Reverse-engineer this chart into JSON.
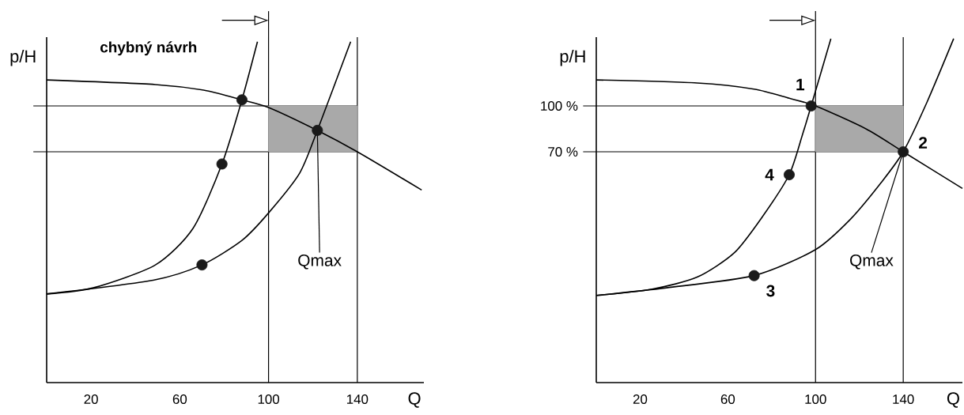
{
  "chart_data": [
    {
      "type": "line",
      "title": "chybný návrh",
      "xlabel": "Q",
      "ylabel": "p/H",
      "xlim": [
        0,
        170
      ],
      "ylim": [
        -81,
        145
      ],
      "xticks": [
        20,
        60,
        100,
        140
      ],
      "tick_labels": "x",
      "series": [
        {
          "type": "bar",
          "color": "#a9a9a9",
          "x": [
            120
          ],
          "base": [
            70
          ],
          "values": [
            30
          ]
        },
        {
          "color": "#000000",
          "x": [
            0,
            49,
            72,
            88,
            100,
            122,
            140,
            169
          ],
          "values": [
            117,
            114,
            110,
            104,
            99,
            84,
            70,
            45
          ]
        },
        {
          "color": "#000000",
          "x": [
            0,
            21,
            49,
            66,
            79,
            88,
            95
          ],
          "values": [
            -23,
            -19,
            -4,
            20,
            62,
            104,
            142
          ]
        },
        {
          "color": "#000000",
          "x": [
            0,
            48,
            70,
            88,
            100,
            114,
            122,
            137
          ],
          "values": [
            -23,
            -14,
            -4,
            12,
            30,
            56,
            84,
            142
          ]
        },
        {
          "type": "scatter",
          "color": "#1a1a1a",
          "marker": "circle",
          "x": [
            88,
            79,
            70,
            122
          ],
          "values": [
            104,
            62,
            -4,
            84
          ]
        }
      ],
      "ref_lines": [
        {
          "axis": "y",
          "value": 100
        },
        {
          "axis": "y",
          "value": 70
        },
        {
          "axis": "x",
          "value": 100
        },
        {
          "axis": "x",
          "value": 140
        }
      ],
      "annotations": [
        {
          "text": "Qmax",
          "x": 122,
          "y": 84
        }
      ]
    },
    {
      "type": "line",
      "xlabel": "Q",
      "ylabel": "p/H",
      "xlim": [
        0,
        167
      ],
      "ylim": [
        -81,
        145
      ],
      "xticks": [
        20,
        60,
        100,
        140
      ],
      "yticks": [
        {
          "value": 100,
          "label": "100 %"
        },
        {
          "value": 70,
          "label": "70 %"
        }
      ],
      "series": [
        {
          "type": "bar",
          "color": "#a9a9a9",
          "x": [
            120
          ],
          "base": [
            70
          ],
          "values": [
            30
          ]
        },
        {
          "color": "#000000",
          "x": [
            0,
            46,
            72,
            88,
            100,
            123,
            140,
            167
          ],
          "values": [
            117,
            115,
            111,
            105,
            100,
            85,
            70,
            46
          ]
        },
        {
          "color": "#000000",
          "x": [
            0,
            25,
            46,
            63,
            76,
            88,
            94,
            98,
            107
          ],
          "values": [
            -24,
            -20,
            -12,
            4,
            28,
            55,
            81,
            100,
            144
          ]
        },
        {
          "color": "#000000",
          "x": [
            0,
            32,
            72,
            100,
            116,
            130,
            140,
            151,
            163
          ],
          "values": [
            -24,
            -19,
            -11,
            6,
            26,
            50,
            70,
            103,
            144
          ]
        },
        {
          "type": "scatter",
          "color": "#1a1a1a",
          "marker": "circle",
          "x": [
            98,
            140,
            72,
            88
          ],
          "values": [
            100,
            70,
            -11,
            55
          ]
        }
      ],
      "ref_lines": [
        {
          "axis": "y",
          "value": 100
        },
        {
          "axis": "y",
          "value": 70
        },
        {
          "axis": "x",
          "value": 100
        },
        {
          "axis": "x",
          "value": 140
        }
      ],
      "annotations": [
        {
          "text": "Qmax",
          "x": 140,
          "y": 70
        },
        {
          "text": "1",
          "x": 98,
          "y": 100
        },
        {
          "text": "2",
          "x": 140,
          "y": 70
        },
        {
          "text": "3",
          "x": 72,
          "y": -11
        },
        {
          "text": "4",
          "x": 88,
          "y": 55
        }
      ]
    }
  ]
}
